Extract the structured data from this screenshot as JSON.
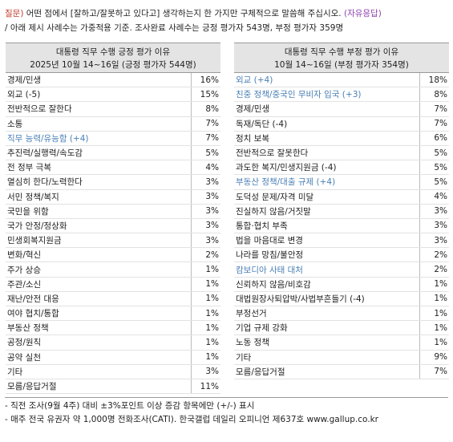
{
  "intro": {
    "q_tag": "질문)",
    "question": " 어떤 점에서 [잘하고/잘못하고 있다고] 생각하는지 한 가지만 구체적으로 말씀해 주십시오. ",
    "open_tag": "(자유응답)",
    "sub": "/ 아래 제시 사례수는 가중적용 기준. 조사완료 사례수는 긍정 평가자 543명, 부정 평가자 359명"
  },
  "left": {
    "title": "대통령 직무 수행 긍정 평가 이유",
    "subtitle": "2025년 10월 14~16일 (긍정 평가자 544명)",
    "rows": [
      {
        "label": "경제/민생",
        "value": "16%",
        "blue": false
      },
      {
        "label": "외교 (-5)",
        "value": "15%",
        "blue": false
      },
      {
        "label": "전반적으로 잘한다",
        "value": "8%",
        "blue": false
      },
      {
        "label": "소통",
        "value": "7%",
        "blue": false
      },
      {
        "label": "직무 능력/유능함 (+4)",
        "value": "7%",
        "blue": true
      },
      {
        "label": "추진력/실행력/속도감",
        "value": "5%",
        "blue": false
      },
      {
        "label": "전 정부 극복",
        "value": "4%",
        "blue": false
      },
      {
        "label": "열심히 한다/노력한다",
        "value": "3%",
        "blue": false
      },
      {
        "label": "서민 정책/복지",
        "value": "3%",
        "blue": false
      },
      {
        "label": "국민을 위함",
        "value": "3%",
        "blue": false
      },
      {
        "label": "국가 안정/정상화",
        "value": "3%",
        "blue": false
      },
      {
        "label": "민생회복지원금",
        "value": "3%",
        "blue": false
      },
      {
        "label": "변화/혁신",
        "value": "2%",
        "blue": false
      },
      {
        "label": "주가 상승",
        "value": "1%",
        "blue": false
      },
      {
        "label": "주관/소신",
        "value": "1%",
        "blue": false
      },
      {
        "label": "재난/안전 대응",
        "value": "1%",
        "blue": false
      },
      {
        "label": "여야 협치/통합",
        "value": "1%",
        "blue": false
      },
      {
        "label": "부동산 정책",
        "value": "1%",
        "blue": false
      },
      {
        "label": "공정/원칙",
        "value": "1%",
        "blue": false
      },
      {
        "label": "공약 실천",
        "value": "1%",
        "blue": false
      },
      {
        "label": "기타",
        "value": "3%",
        "blue": false
      },
      {
        "label": "모름/응답거절",
        "value": "11%",
        "blue": false
      }
    ]
  },
  "right": {
    "title": "대통령 직무 수행 부정 평가 이유",
    "subtitle": "10월 14~16일 (부정 평가자 354명)",
    "rows": [
      {
        "label": "외교 (+4)",
        "value": "18%",
        "blue": true
      },
      {
        "label": "친중 정책/중국인 무비자 입국 (+3)",
        "value": "8%",
        "blue": true
      },
      {
        "label": "경제/민생",
        "value": "7%",
        "blue": false
      },
      {
        "label": "독재/독단 (-4)",
        "value": "7%",
        "blue": false
      },
      {
        "label": "정치 보복",
        "value": "6%",
        "blue": false
      },
      {
        "label": "전반적으로 잘못한다",
        "value": "5%",
        "blue": false
      },
      {
        "label": "과도한 복지/민생지원금 (-4)",
        "value": "5%",
        "blue": false
      },
      {
        "label": "부동산 정책/대출 규제 (+4)",
        "value": "5%",
        "blue": true
      },
      {
        "label": "도덕성 문제/자격 미달",
        "value": "4%",
        "blue": false
      },
      {
        "label": "진실하지 않음/거짓말",
        "value": "3%",
        "blue": false
      },
      {
        "label": "통합·협치 부족",
        "value": "3%",
        "blue": false
      },
      {
        "label": "법을 마음대로 변경",
        "value": "3%",
        "blue": false
      },
      {
        "label": "나라를 망침/불안정",
        "value": "2%",
        "blue": false
      },
      {
        "label": "캄보디아 사태 대처",
        "value": "2%",
        "blue": true
      },
      {
        "label": "신뢰하지 않음/비호감",
        "value": "1%",
        "blue": false
      },
      {
        "label": "대법원장사퇴압박/사법부흔들기 (-4)",
        "value": "1%",
        "blue": false
      },
      {
        "label": "부정선거",
        "value": "1%",
        "blue": false
      },
      {
        "label": "기업 규제 강화",
        "value": "1%",
        "blue": false
      },
      {
        "label": "노동 정책",
        "value": "1%",
        "blue": false
      },
      {
        "label": "기타",
        "value": "9%",
        "blue": false
      },
      {
        "label": "모름/응답거절",
        "value": "7%",
        "blue": false
      }
    ]
  },
  "notes": [
    "- 직전 조사(9월 4주) 대비 ±3%포인트 이상 증감 항목에만 (+/-) 표시",
    "- 매주 전국 유권자 약 1,000명 전화조사(CATI). 한국갤럽 데일리 오피니언 제637호 www.gallup.co.kr"
  ]
}
